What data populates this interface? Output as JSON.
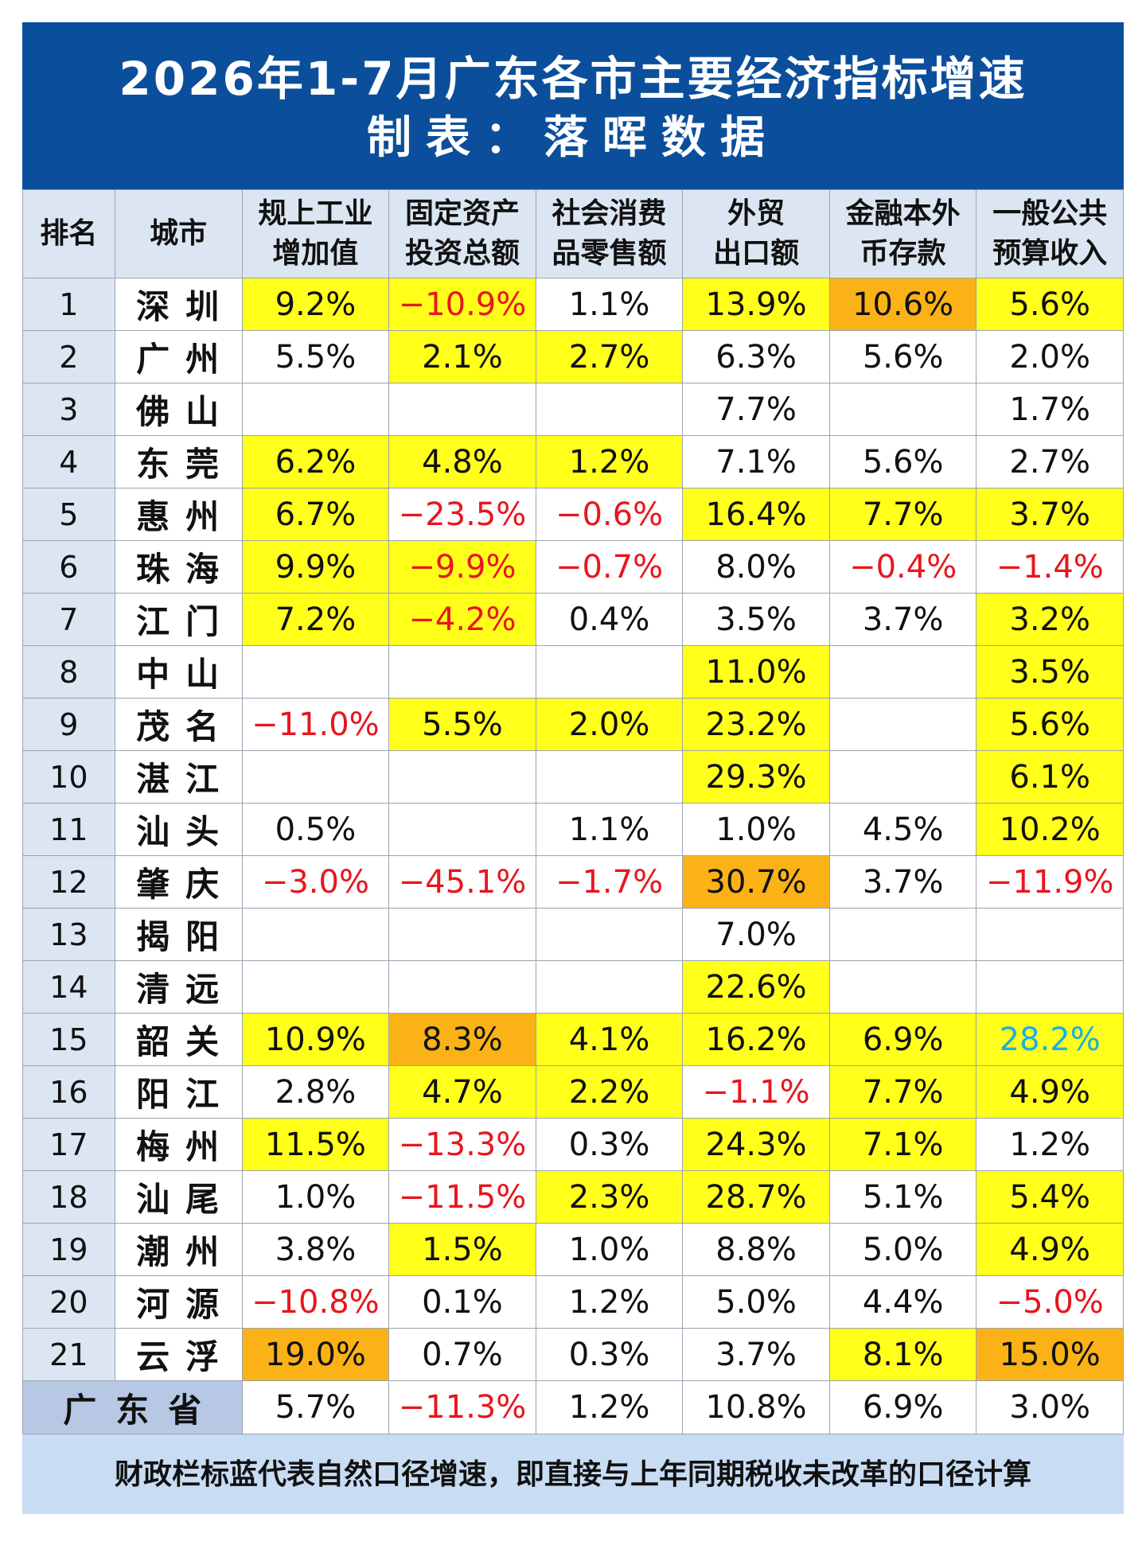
{
  "title": "2026年1-7月广东各市主要经济指标增速",
  "subtitle": "制表：落晖数据",
  "columns": [
    {
      "key": "rank",
      "lines": [
        "排名"
      ]
    },
    {
      "key": "city",
      "lines": [
        "城市"
      ]
    },
    {
      "key": "industry",
      "lines": [
        "规上工业",
        "增加值"
      ]
    },
    {
      "key": "investment",
      "lines": [
        "固定资产",
        "投资总额"
      ]
    },
    {
      "key": "retail",
      "lines": [
        "社会消费",
        "品零售额"
      ]
    },
    {
      "key": "export",
      "lines": [
        "外贸",
        "出口额"
      ]
    },
    {
      "key": "deposit",
      "lines": [
        "金融本外",
        "币存款"
      ]
    },
    {
      "key": "budget",
      "lines": [
        "一般公共",
        "预算收入"
      ]
    }
  ],
  "legend_colors": {
    "yellow": "#ffff1a",
    "orange": "#fbb217",
    "negative": "#e8161d",
    "natural_caliber": "#1ab0e0"
  },
  "rows": [
    {
      "rank": "1",
      "city": "深圳",
      "cells": [
        {
          "v": "9.2%",
          "bg": "yel"
        },
        {
          "v": "−10.9%",
          "bg": "yel",
          "c": "neg"
        },
        {
          "v": "1.1%"
        },
        {
          "v": "13.9%",
          "bg": "yel"
        },
        {
          "v": "10.6%",
          "bg": "org"
        },
        {
          "v": "5.6%",
          "bg": "yel"
        }
      ]
    },
    {
      "rank": "2",
      "city": "广州",
      "cells": [
        {
          "v": "5.5%"
        },
        {
          "v": "2.1%",
          "bg": "yel"
        },
        {
          "v": "2.7%",
          "bg": "yel"
        },
        {
          "v": "6.3%"
        },
        {
          "v": "5.6%"
        },
        {
          "v": "2.0%"
        }
      ]
    },
    {
      "rank": "3",
      "city": "佛山",
      "cells": [
        {
          "v": ""
        },
        {
          "v": ""
        },
        {
          "v": ""
        },
        {
          "v": "7.7%"
        },
        {
          "v": ""
        },
        {
          "v": "1.7%"
        }
      ]
    },
    {
      "rank": "4",
      "city": "东莞",
      "cells": [
        {
          "v": "6.2%",
          "bg": "yel"
        },
        {
          "v": "4.8%",
          "bg": "yel"
        },
        {
          "v": "1.2%",
          "bg": "yel"
        },
        {
          "v": "7.1%"
        },
        {
          "v": "5.6%"
        },
        {
          "v": "2.7%"
        }
      ]
    },
    {
      "rank": "5",
      "city": "惠州",
      "cells": [
        {
          "v": "6.7%",
          "bg": "yel"
        },
        {
          "v": "−23.5%",
          "c": "neg"
        },
        {
          "v": "−0.6%",
          "c": "neg"
        },
        {
          "v": "16.4%",
          "bg": "yel"
        },
        {
          "v": "7.7%",
          "bg": "yel"
        },
        {
          "v": "3.7%",
          "bg": "yel"
        }
      ]
    },
    {
      "rank": "6",
      "city": "珠海",
      "cells": [
        {
          "v": "9.9%",
          "bg": "yel"
        },
        {
          "v": "−9.9%",
          "bg": "yel",
          "c": "neg"
        },
        {
          "v": "−0.7%",
          "c": "neg"
        },
        {
          "v": "8.0%"
        },
        {
          "v": "−0.4%",
          "c": "neg"
        },
        {
          "v": "−1.4%",
          "c": "neg"
        }
      ]
    },
    {
      "rank": "7",
      "city": "江门",
      "cells": [
        {
          "v": "7.2%",
          "bg": "yel"
        },
        {
          "v": "−4.2%",
          "bg": "yel",
          "c": "neg"
        },
        {
          "v": "0.4%"
        },
        {
          "v": "3.5%"
        },
        {
          "v": "3.7%"
        },
        {
          "v": "3.2%",
          "bg": "yel"
        }
      ]
    },
    {
      "rank": "8",
      "city": "中山",
      "cells": [
        {
          "v": ""
        },
        {
          "v": ""
        },
        {
          "v": ""
        },
        {
          "v": "11.0%",
          "bg": "yel"
        },
        {
          "v": ""
        },
        {
          "v": "3.5%",
          "bg": "yel"
        }
      ]
    },
    {
      "rank": "9",
      "city": "茂名",
      "cells": [
        {
          "v": "−11.0%",
          "c": "neg"
        },
        {
          "v": "5.5%",
          "bg": "yel"
        },
        {
          "v": "2.0%",
          "bg": "yel"
        },
        {
          "v": "23.2%",
          "bg": "yel"
        },
        {
          "v": ""
        },
        {
          "v": "5.6%",
          "bg": "yel"
        }
      ]
    },
    {
      "rank": "10",
      "city": "湛江",
      "cells": [
        {
          "v": ""
        },
        {
          "v": ""
        },
        {
          "v": ""
        },
        {
          "v": "29.3%",
          "bg": "yel"
        },
        {
          "v": ""
        },
        {
          "v": "6.1%",
          "bg": "yel"
        }
      ]
    },
    {
      "rank": "11",
      "city": "汕头",
      "cells": [
        {
          "v": "0.5%"
        },
        {
          "v": ""
        },
        {
          "v": "1.1%"
        },
        {
          "v": "1.0%"
        },
        {
          "v": "4.5%"
        },
        {
          "v": "10.2%",
          "bg": "yel"
        }
      ]
    },
    {
      "rank": "12",
      "city": "肇庆",
      "cells": [
        {
          "v": "−3.0%",
          "c": "neg"
        },
        {
          "v": "−45.1%",
          "c": "neg"
        },
        {
          "v": "−1.7%",
          "c": "neg"
        },
        {
          "v": "30.7%",
          "bg": "org"
        },
        {
          "v": "3.7%"
        },
        {
          "v": "−11.9%",
          "c": "neg"
        }
      ]
    },
    {
      "rank": "13",
      "city": "揭阳",
      "cells": [
        {
          "v": ""
        },
        {
          "v": ""
        },
        {
          "v": ""
        },
        {
          "v": "7.0%"
        },
        {
          "v": ""
        },
        {
          "v": ""
        }
      ]
    },
    {
      "rank": "14",
      "city": "清远",
      "cells": [
        {
          "v": ""
        },
        {
          "v": ""
        },
        {
          "v": ""
        },
        {
          "v": "22.6%",
          "bg": "yel"
        },
        {
          "v": ""
        },
        {
          "v": ""
        }
      ]
    },
    {
      "rank": "15",
      "city": "韶关",
      "cells": [
        {
          "v": "10.9%",
          "bg": "yel"
        },
        {
          "v": "8.3%",
          "bg": "org"
        },
        {
          "v": "4.1%",
          "bg": "yel"
        },
        {
          "v": "16.2%",
          "bg": "yel"
        },
        {
          "v": "6.9%",
          "bg": "yel"
        },
        {
          "v": "28.2%",
          "bg": "yel",
          "c": "blu"
        }
      ]
    },
    {
      "rank": "16",
      "city": "阳江",
      "cells": [
        {
          "v": "2.8%"
        },
        {
          "v": "4.7%",
          "bg": "yel"
        },
        {
          "v": "2.2%",
          "bg": "yel"
        },
        {
          "v": "−1.1%",
          "c": "neg"
        },
        {
          "v": "7.7%",
          "bg": "yel"
        },
        {
          "v": "4.9%",
          "bg": "yel"
        }
      ]
    },
    {
      "rank": "17",
      "city": "梅州",
      "cells": [
        {
          "v": "11.5%",
          "bg": "yel"
        },
        {
          "v": "−13.3%",
          "c": "neg"
        },
        {
          "v": "0.3%"
        },
        {
          "v": "24.3%",
          "bg": "yel"
        },
        {
          "v": "7.1%",
          "bg": "yel"
        },
        {
          "v": "1.2%"
        }
      ]
    },
    {
      "rank": "18",
      "city": "汕尾",
      "cells": [
        {
          "v": "1.0%"
        },
        {
          "v": "−11.5%",
          "c": "neg"
        },
        {
          "v": "2.3%",
          "bg": "yel"
        },
        {
          "v": "28.7%",
          "bg": "yel"
        },
        {
          "v": "5.1%"
        },
        {
          "v": "5.4%",
          "bg": "yel"
        }
      ]
    },
    {
      "rank": "19",
      "city": "潮州",
      "cells": [
        {
          "v": "3.8%"
        },
        {
          "v": "1.5%",
          "bg": "yel"
        },
        {
          "v": "1.0%"
        },
        {
          "v": "8.8%"
        },
        {
          "v": "5.0%"
        },
        {
          "v": "4.9%",
          "bg": "yel"
        }
      ]
    },
    {
      "rank": "20",
      "city": "河源",
      "cells": [
        {
          "v": "−10.8%",
          "c": "neg"
        },
        {
          "v": "0.1%"
        },
        {
          "v": "1.2%"
        },
        {
          "v": "5.0%"
        },
        {
          "v": "4.4%"
        },
        {
          "v": "−5.0%",
          "c": "neg"
        }
      ]
    },
    {
      "rank": "21",
      "city": "云浮",
      "cells": [
        {
          "v": "19.0%",
          "bg": "org"
        },
        {
          "v": "0.7%"
        },
        {
          "v": "0.3%"
        },
        {
          "v": "3.7%"
        },
        {
          "v": "8.1%",
          "bg": "yel"
        },
        {
          "v": "15.0%",
          "bg": "org"
        }
      ]
    }
  ],
  "total": {
    "label": "广东省",
    "cells": [
      {
        "v": "5.7%"
      },
      {
        "v": "−11.3%",
        "c": "neg"
      },
      {
        "v": "1.2%"
      },
      {
        "v": "10.8%"
      },
      {
        "v": "6.9%"
      },
      {
        "v": "3.0%"
      }
    ]
  },
  "footer": "财政栏标蓝代表自然口径增速，即直接与上年同期税收未改革的口径计算"
}
